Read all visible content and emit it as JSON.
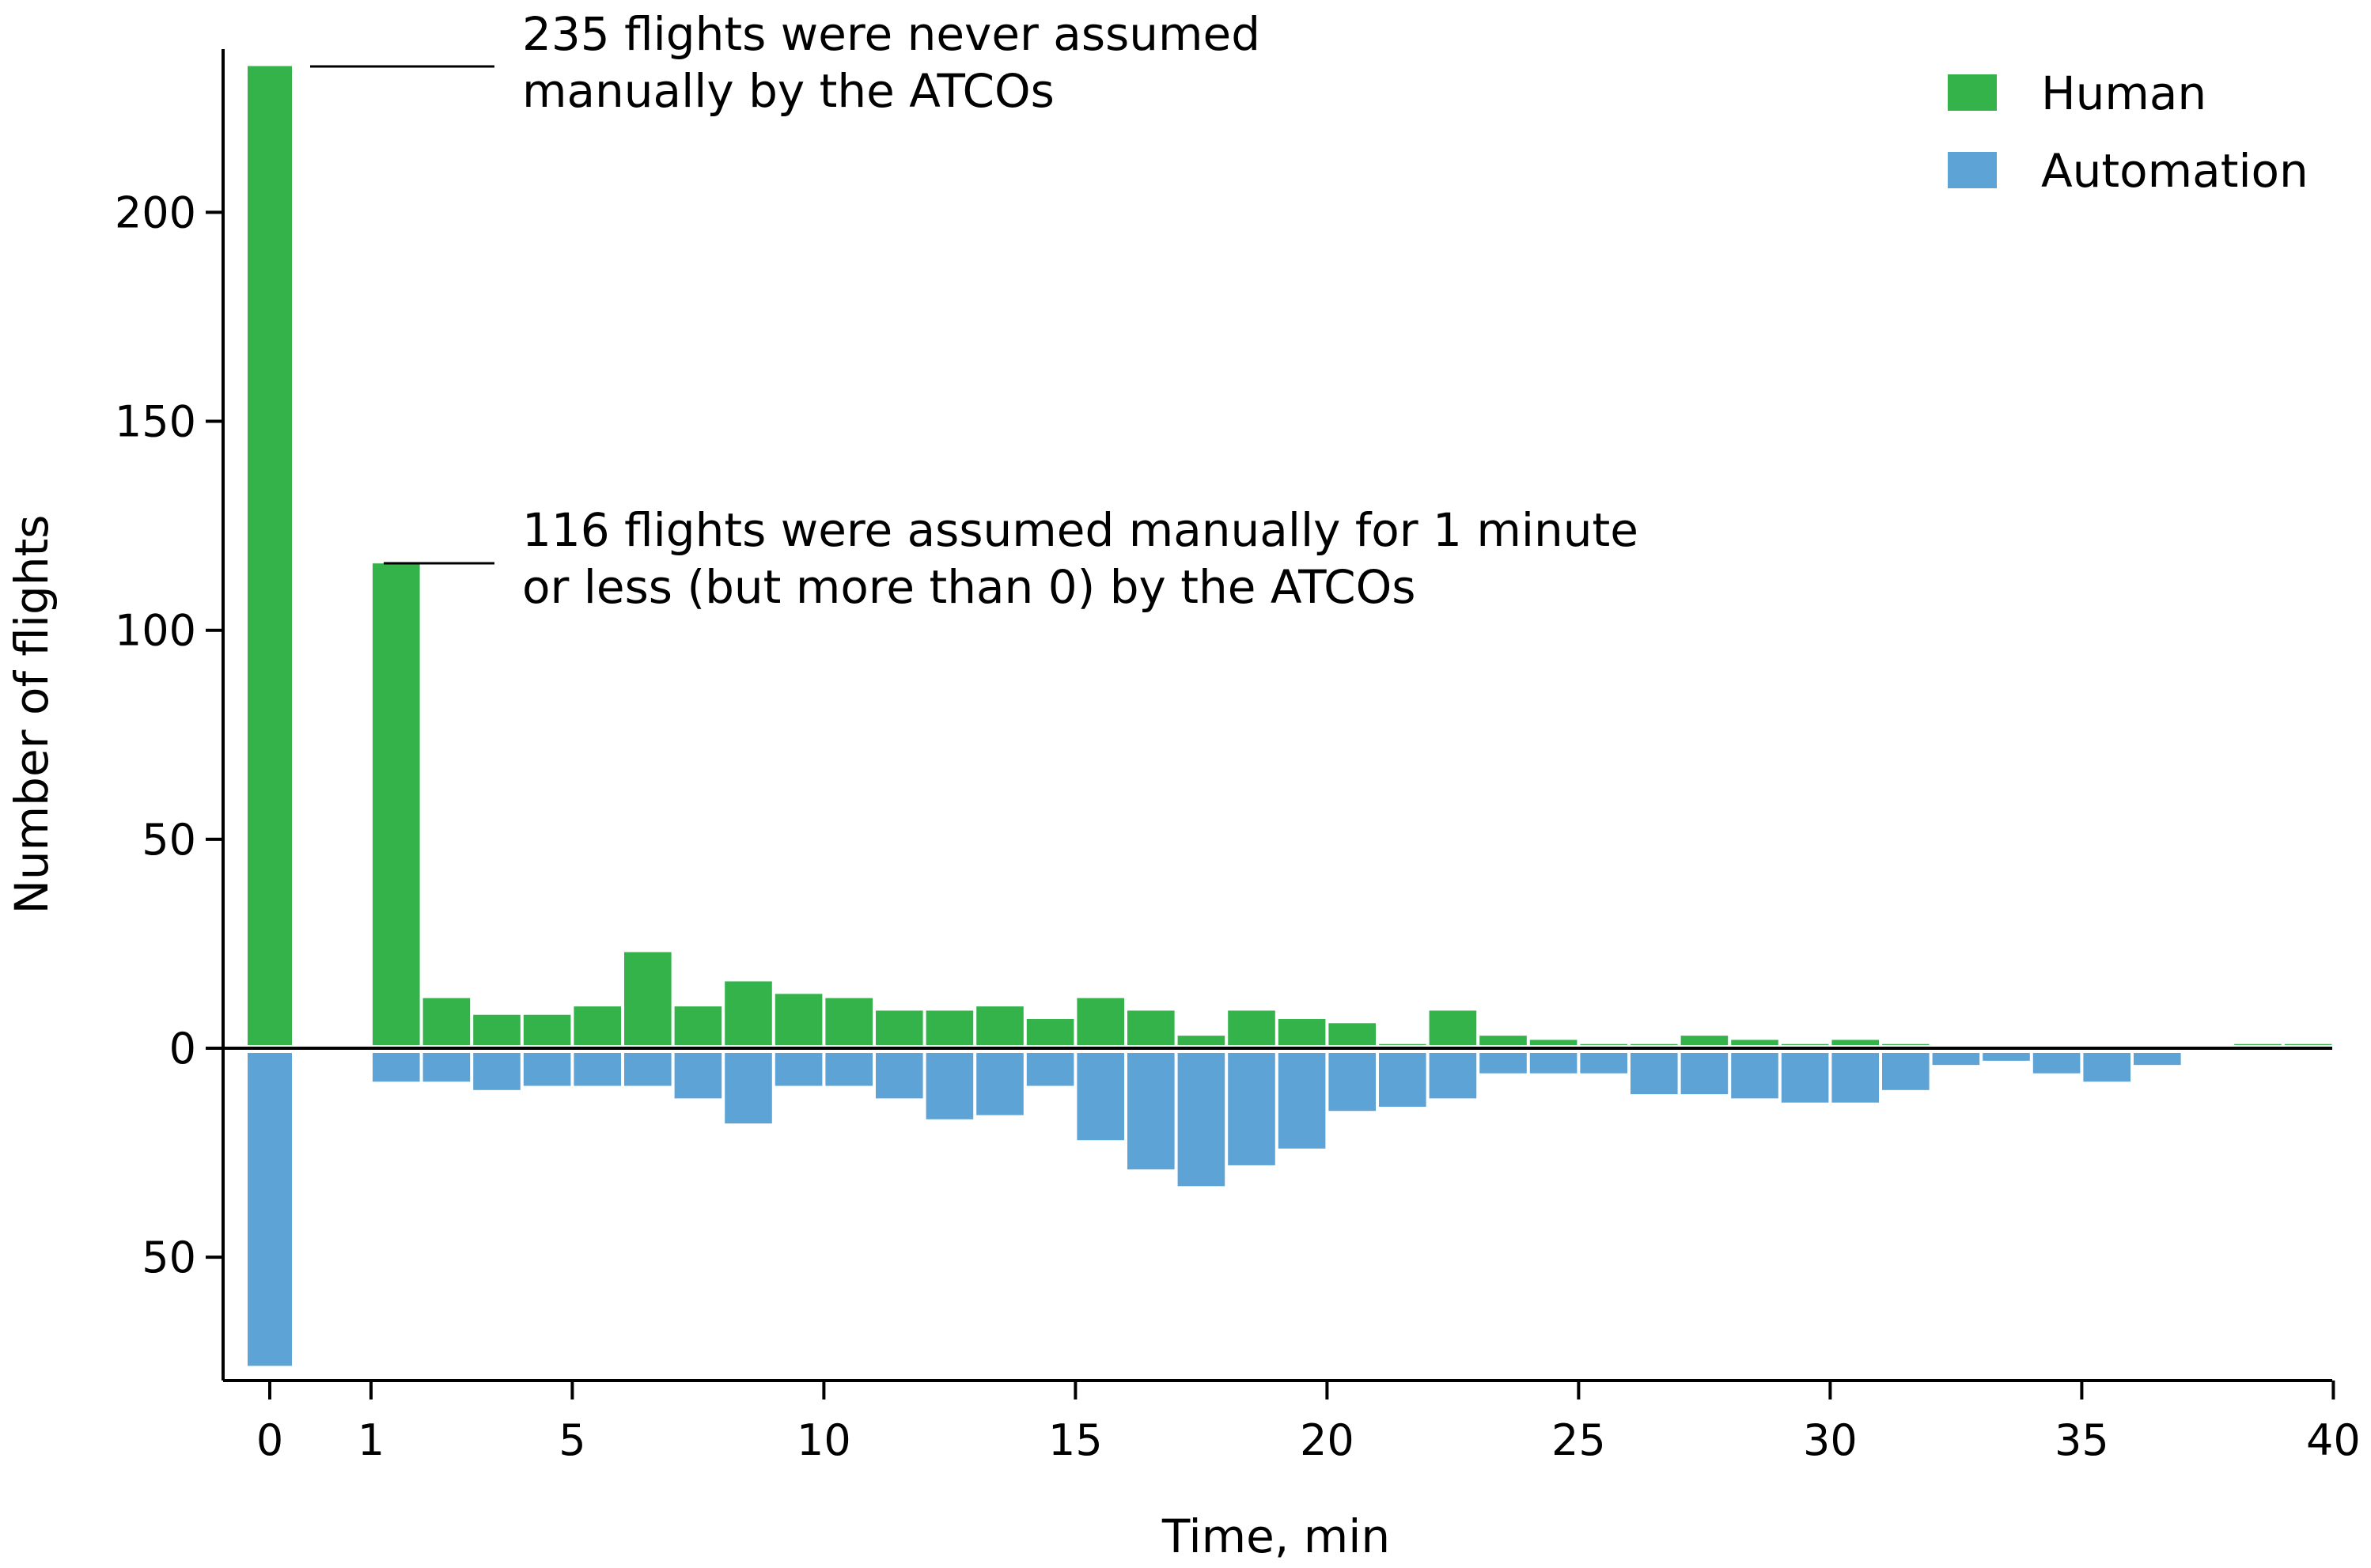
{
  "chart_data": {
    "type": "bar",
    "title": "",
    "xlabel": "Time, min",
    "ylabel": "Number of flights",
    "x_ticks": [
      0,
      1,
      5,
      10,
      15,
      20,
      25,
      30,
      35,
      40
    ],
    "y_ticks": [
      {
        "value": 200,
        "label": "200"
      },
      {
        "value": 150,
        "label": "150"
      },
      {
        "value": 100,
        "label": "100"
      },
      {
        "value": 50,
        "label": "50"
      },
      {
        "value": 0,
        "label": "0"
      },
      {
        "value": -50,
        "label": "50"
      }
    ],
    "ylim": [
      -80,
      235
    ],
    "xlim": [
      -0.5,
      40
    ],
    "bins": [
      "0",
      "0-1",
      "1-2",
      "2-3",
      "3-4",
      "4-5",
      "5-6",
      "6-7",
      "7-8",
      "8-9",
      "9-10",
      "10-11",
      "11-12",
      "12-13",
      "13-14",
      "14-15",
      "15-16",
      "16-17",
      "17-18",
      "18-19",
      "19-20",
      "20-21",
      "21-22",
      "22-23",
      "23-24",
      "24-25",
      "25-26",
      "26-27",
      "27-28",
      "28-29",
      "29-30",
      "30-31",
      "31-32",
      "32-33",
      "33-34",
      "34-35",
      "35-36",
      "36-37",
      "37-38",
      "38-39",
      "39-40"
    ],
    "series": [
      {
        "name": "Human",
        "color": "#33b34a",
        "direction": "up",
        "values": [
          235,
          116,
          12,
          8,
          8,
          10,
          23,
          10,
          16,
          13,
          12,
          9,
          9,
          10,
          7,
          12,
          9,
          3,
          9,
          7,
          6,
          1,
          9,
          3,
          2,
          1,
          1,
          3,
          2,
          1,
          2,
          1,
          0,
          0,
          0,
          0,
          0,
          0,
          1,
          1,
          0
        ]
      },
      {
        "name": "Automation",
        "color": "#5ea3d6",
        "direction": "down",
        "values": [
          76,
          8,
          8,
          10,
          9,
          9,
          9,
          12,
          18,
          9,
          9,
          12,
          17,
          16,
          9,
          22,
          29,
          33,
          28,
          24,
          15,
          14,
          12,
          6,
          6,
          6,
          11,
          11,
          12,
          13,
          13,
          10,
          4,
          3,
          6,
          8,
          4,
          0,
          0,
          0,
          0
        ]
      }
    ],
    "legend_position": "top-right",
    "annotations": [
      {
        "lines": [
          "235 flights were never assumed",
          "manually by the ATCOs"
        ],
        "target_bin": 0,
        "target_value": 235
      },
      {
        "lines": [
          "116 flights were assumed manually for 1 minute",
          "or less (but more than 0) by the ATCOs"
        ],
        "target_bin": 1,
        "target_value": 116
      }
    ]
  }
}
